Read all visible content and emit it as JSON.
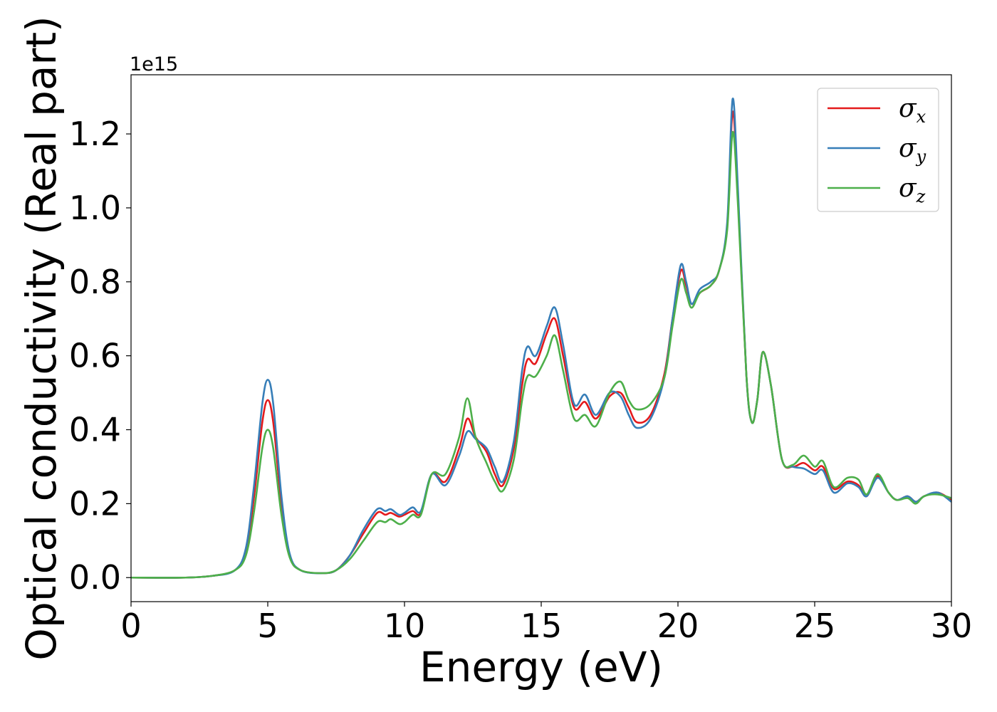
{
  "chart_data": {
    "type": "line",
    "xlabel": "Energy (eV)",
    "ylabel": "Optical conductivity (Real part)",
    "y_offset_label": "1e15",
    "xlim": [
      0,
      30
    ],
    "ylim": [
      -0.065,
      1.36
    ],
    "x_ticks": [
      0,
      5,
      10,
      15,
      20,
      25,
      30
    ],
    "x_tick_labels": [
      "0",
      "5",
      "10",
      "15",
      "20",
      "25",
      "30"
    ],
    "y_ticks": [
      0.0,
      0.2,
      0.4,
      0.6,
      0.8,
      1.0,
      1.2
    ],
    "y_tick_labels": [
      "0.0",
      "0.2",
      "0.4",
      "0.6",
      "0.8",
      "1.0",
      "1.2"
    ],
    "grid": false,
    "legend_position": "top-right",
    "series": [
      {
        "name": "σx",
        "label_base": "σ",
        "label_sub": "x",
        "color": "#e41a1c",
        "points": [
          [
            0,
            0.0
          ],
          [
            2,
            0.0
          ],
          [
            3,
            0.005
          ],
          [
            3.8,
            0.02
          ],
          [
            4.2,
            0.07
          ],
          [
            4.5,
            0.22
          ],
          [
            4.8,
            0.42
          ],
          [
            5.0,
            0.48
          ],
          [
            5.2,
            0.42
          ],
          [
            5.5,
            0.2
          ],
          [
            5.8,
            0.06
          ],
          [
            6.2,
            0.02
          ],
          [
            7.0,
            0.012
          ],
          [
            7.5,
            0.02
          ],
          [
            8.0,
            0.06
          ],
          [
            8.5,
            0.12
          ],
          [
            9.0,
            0.175
          ],
          [
            9.3,
            0.17
          ],
          [
            9.5,
            0.175
          ],
          [
            9.8,
            0.165
          ],
          [
            10.0,
            0.17
          ],
          [
            10.3,
            0.18
          ],
          [
            10.6,
            0.175
          ],
          [
            11.0,
            0.28
          ],
          [
            11.5,
            0.26
          ],
          [
            12.0,
            0.35
          ],
          [
            12.3,
            0.43
          ],
          [
            12.6,
            0.38
          ],
          [
            13.0,
            0.34
          ],
          [
            13.3,
            0.28
          ],
          [
            13.6,
            0.25
          ],
          [
            14.0,
            0.35
          ],
          [
            14.3,
            0.52
          ],
          [
            14.5,
            0.59
          ],
          [
            14.8,
            0.58
          ],
          [
            15.2,
            0.66
          ],
          [
            15.5,
            0.7
          ],
          [
            15.8,
            0.6
          ],
          [
            16.2,
            0.46
          ],
          [
            16.6,
            0.475
          ],
          [
            17.0,
            0.43
          ],
          [
            17.5,
            0.49
          ],
          [
            17.9,
            0.5
          ],
          [
            18.2,
            0.46
          ],
          [
            18.5,
            0.42
          ],
          [
            19.0,
            0.44
          ],
          [
            19.5,
            0.55
          ],
          [
            19.8,
            0.7
          ],
          [
            20.1,
            0.83
          ],
          [
            20.3,
            0.79
          ],
          [
            20.5,
            0.74
          ],
          [
            20.8,
            0.77
          ],
          [
            21.2,
            0.79
          ],
          [
            21.5,
            0.83
          ],
          [
            21.8,
            0.95
          ],
          [
            22.0,
            1.26
          ],
          [
            22.2,
            1.02
          ],
          [
            22.5,
            0.55
          ],
          [
            22.7,
            0.42
          ],
          [
            22.9,
            0.48
          ],
          [
            23.1,
            0.61
          ],
          [
            23.4,
            0.52
          ],
          [
            23.8,
            0.32
          ],
          [
            24.2,
            0.3
          ],
          [
            24.6,
            0.31
          ],
          [
            25.0,
            0.29
          ],
          [
            25.3,
            0.3
          ],
          [
            25.7,
            0.24
          ],
          [
            26.2,
            0.26
          ],
          [
            26.6,
            0.25
          ],
          [
            26.9,
            0.22
          ],
          [
            27.3,
            0.275
          ],
          [
            27.7,
            0.23
          ],
          [
            28.0,
            0.21
          ],
          [
            28.4,
            0.22
          ],
          [
            28.7,
            0.205
          ],
          [
            29.0,
            0.22
          ],
          [
            29.5,
            0.23
          ],
          [
            30.0,
            0.21
          ]
        ]
      },
      {
        "name": "σy",
        "label_base": "σ",
        "label_sub": "y",
        "color": "#377eb8",
        "points": [
          [
            0,
            0.0
          ],
          [
            2,
            0.0
          ],
          [
            3,
            0.005
          ],
          [
            3.8,
            0.02
          ],
          [
            4.2,
            0.08
          ],
          [
            4.5,
            0.25
          ],
          [
            4.8,
            0.47
          ],
          [
            5.0,
            0.535
          ],
          [
            5.2,
            0.47
          ],
          [
            5.5,
            0.22
          ],
          [
            5.8,
            0.065
          ],
          [
            6.2,
            0.02
          ],
          [
            7.0,
            0.012
          ],
          [
            7.5,
            0.02
          ],
          [
            8.0,
            0.06
          ],
          [
            8.5,
            0.13
          ],
          [
            9.0,
            0.185
          ],
          [
            9.3,
            0.18
          ],
          [
            9.5,
            0.185
          ],
          [
            9.8,
            0.17
          ],
          [
            10.0,
            0.175
          ],
          [
            10.3,
            0.19
          ],
          [
            10.6,
            0.18
          ],
          [
            11.0,
            0.28
          ],
          [
            11.5,
            0.25
          ],
          [
            12.0,
            0.33
          ],
          [
            12.3,
            0.395
          ],
          [
            12.6,
            0.375
          ],
          [
            13.0,
            0.35
          ],
          [
            13.3,
            0.3
          ],
          [
            13.6,
            0.26
          ],
          [
            14.0,
            0.37
          ],
          [
            14.3,
            0.56
          ],
          [
            14.5,
            0.625
          ],
          [
            14.8,
            0.6
          ],
          [
            15.2,
            0.68
          ],
          [
            15.5,
            0.73
          ],
          [
            15.8,
            0.63
          ],
          [
            16.2,
            0.47
          ],
          [
            16.6,
            0.495
          ],
          [
            17.0,
            0.44
          ],
          [
            17.5,
            0.5
          ],
          [
            17.9,
            0.49
          ],
          [
            18.2,
            0.44
          ],
          [
            18.5,
            0.405
          ],
          [
            19.0,
            0.43
          ],
          [
            19.5,
            0.54
          ],
          [
            19.8,
            0.7
          ],
          [
            20.1,
            0.845
          ],
          [
            20.3,
            0.8
          ],
          [
            20.5,
            0.74
          ],
          [
            20.8,
            0.78
          ],
          [
            21.2,
            0.8
          ],
          [
            21.5,
            0.83
          ],
          [
            21.8,
            0.96
          ],
          [
            22.0,
            1.295
          ],
          [
            22.2,
            1.04
          ],
          [
            22.5,
            0.55
          ],
          [
            22.7,
            0.42
          ],
          [
            22.9,
            0.48
          ],
          [
            23.1,
            0.61
          ],
          [
            23.4,
            0.52
          ],
          [
            23.8,
            0.32
          ],
          [
            24.2,
            0.3
          ],
          [
            24.6,
            0.295
          ],
          [
            25.0,
            0.28
          ],
          [
            25.3,
            0.29
          ],
          [
            25.7,
            0.23
          ],
          [
            26.2,
            0.255
          ],
          [
            26.6,
            0.245
          ],
          [
            26.9,
            0.22
          ],
          [
            27.3,
            0.27
          ],
          [
            27.7,
            0.23
          ],
          [
            28.0,
            0.21
          ],
          [
            28.4,
            0.22
          ],
          [
            28.7,
            0.205
          ],
          [
            29.0,
            0.22
          ],
          [
            29.5,
            0.23
          ],
          [
            30.0,
            0.205
          ]
        ]
      },
      {
        "name": "σz",
        "label_base": "σ",
        "label_sub": "z",
        "color": "#4daf4a",
        "points": [
          [
            0,
            0.0
          ],
          [
            2,
            0.0
          ],
          [
            3,
            0.005
          ],
          [
            3.8,
            0.02
          ],
          [
            4.2,
            0.06
          ],
          [
            4.5,
            0.18
          ],
          [
            4.8,
            0.35
          ],
          [
            5.0,
            0.4
          ],
          [
            5.2,
            0.35
          ],
          [
            5.5,
            0.17
          ],
          [
            5.8,
            0.055
          ],
          [
            6.2,
            0.02
          ],
          [
            7.0,
            0.012
          ],
          [
            7.5,
            0.02
          ],
          [
            8.0,
            0.05
          ],
          [
            8.5,
            0.1
          ],
          [
            9.0,
            0.15
          ],
          [
            9.3,
            0.15
          ],
          [
            9.5,
            0.158
          ],
          [
            9.8,
            0.145
          ],
          [
            10.0,
            0.15
          ],
          [
            10.3,
            0.17
          ],
          [
            10.6,
            0.17
          ],
          [
            11.0,
            0.28
          ],
          [
            11.5,
            0.28
          ],
          [
            12.0,
            0.38
          ],
          [
            12.3,
            0.485
          ],
          [
            12.6,
            0.38
          ],
          [
            13.0,
            0.31
          ],
          [
            13.3,
            0.26
          ],
          [
            13.6,
            0.235
          ],
          [
            14.0,
            0.32
          ],
          [
            14.3,
            0.48
          ],
          [
            14.5,
            0.545
          ],
          [
            14.8,
            0.545
          ],
          [
            15.2,
            0.6
          ],
          [
            15.5,
            0.655
          ],
          [
            15.8,
            0.56
          ],
          [
            16.2,
            0.43
          ],
          [
            16.6,
            0.44
          ],
          [
            17.0,
            0.41
          ],
          [
            17.5,
            0.5
          ],
          [
            17.9,
            0.53
          ],
          [
            18.2,
            0.48
          ],
          [
            18.5,
            0.455
          ],
          [
            19.0,
            0.47
          ],
          [
            19.5,
            0.54
          ],
          [
            19.8,
            0.68
          ],
          [
            20.1,
            0.805
          ],
          [
            20.3,
            0.77
          ],
          [
            20.5,
            0.73
          ],
          [
            20.8,
            0.77
          ],
          [
            21.2,
            0.79
          ],
          [
            21.5,
            0.83
          ],
          [
            21.8,
            0.94
          ],
          [
            22.0,
            1.205
          ],
          [
            22.2,
            1.0
          ],
          [
            22.5,
            0.55
          ],
          [
            22.7,
            0.42
          ],
          [
            22.9,
            0.48
          ],
          [
            23.1,
            0.61
          ],
          [
            23.4,
            0.52
          ],
          [
            23.8,
            0.32
          ],
          [
            24.2,
            0.305
          ],
          [
            24.6,
            0.33
          ],
          [
            25.0,
            0.3
          ],
          [
            25.3,
            0.315
          ],
          [
            25.7,
            0.245
          ],
          [
            26.2,
            0.27
          ],
          [
            26.6,
            0.265
          ],
          [
            26.9,
            0.225
          ],
          [
            27.3,
            0.28
          ],
          [
            27.7,
            0.23
          ],
          [
            28.0,
            0.21
          ],
          [
            28.4,
            0.215
          ],
          [
            28.7,
            0.2
          ],
          [
            29.0,
            0.22
          ],
          [
            29.5,
            0.225
          ],
          [
            30.0,
            0.215
          ]
        ]
      }
    ]
  }
}
